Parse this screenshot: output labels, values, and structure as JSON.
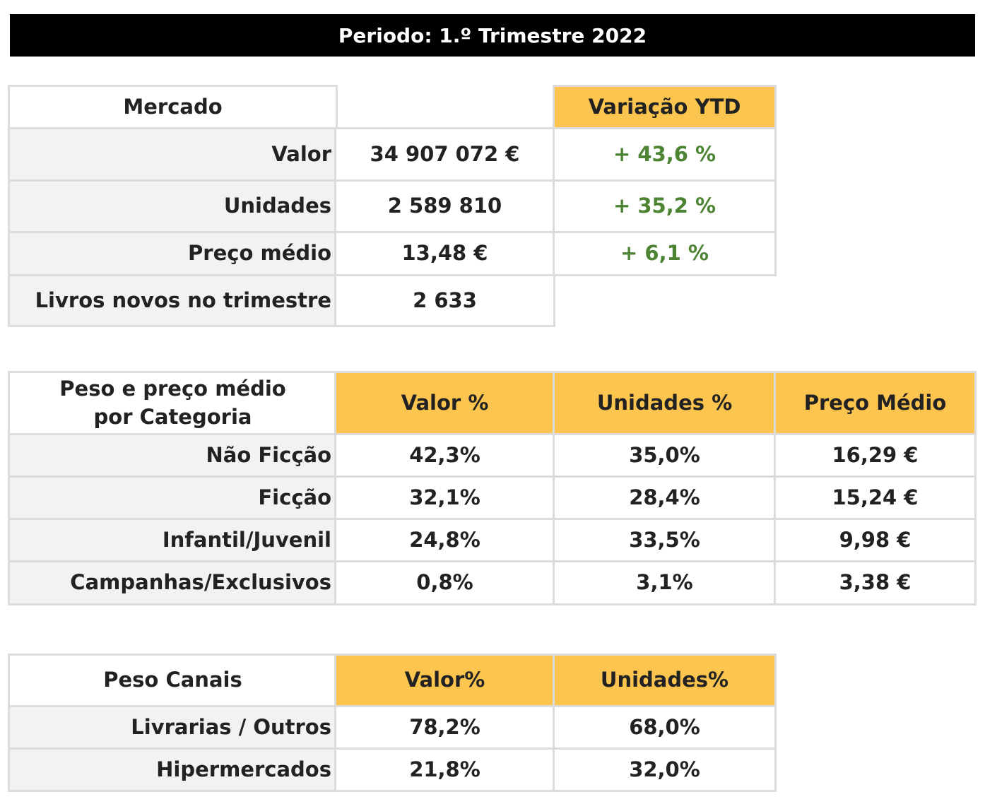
{
  "title": "Periodo: 1.º Trimestre 2022",
  "market": {
    "header": "Mercado",
    "variation_header": "Variação YTD",
    "rows": [
      {
        "label": "Valor",
        "value": "34 907 072 €",
        "variation": "+ 43,6 %"
      },
      {
        "label": "Unidades",
        "value": "2 589 810",
        "variation": "+ 35,2 %"
      },
      {
        "label": "Preço médio",
        "value": "13,48 €",
        "variation": "+ 6,1 %"
      },
      {
        "label": "Livros novos no trimestre",
        "value": "2 633"
      }
    ]
  },
  "categories": {
    "header": "Peso e preço médio por Categoria",
    "columns": [
      "Valor %",
      "Unidades %",
      "Preço Médio"
    ],
    "rows": [
      {
        "label": "Não Ficção",
        "valor": "42,3%",
        "unidades": "35,0%",
        "preco": "16,29 €"
      },
      {
        "label": "Ficção",
        "valor": "32,1%",
        "unidades": "28,4%",
        "preco": "15,24 €"
      },
      {
        "label": "Infantil/Juvenil",
        "valor": "24,8%",
        "unidades": "33,5%",
        "preco": "9,98 €"
      },
      {
        "label": "Campanhas/Exclusivos",
        "valor": "0,8%",
        "unidades": "3,1%",
        "preco": "3,38 €"
      }
    ]
  },
  "channels": {
    "header": "Peso Canais",
    "columns": [
      "Valor%",
      "Unidades%"
    ],
    "rows": [
      {
        "label": "Livrarias / Outros",
        "valor": "78,2%",
        "unidades": "68,0%"
      },
      {
        "label": "Hipermercados",
        "valor": "21,8%",
        "unidades": "32,0%"
      }
    ]
  },
  "colors": {
    "accent": "#fcc54f",
    "positive": "#4c8433",
    "title_bg": "#000000"
  }
}
